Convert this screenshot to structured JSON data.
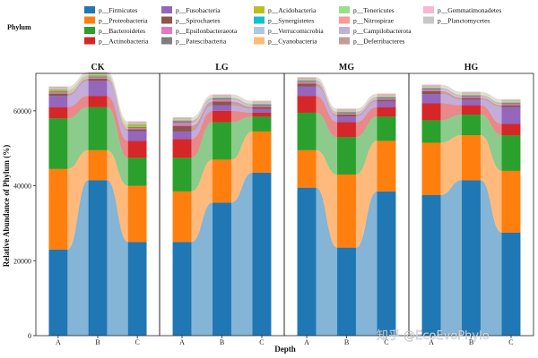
{
  "watermark": "知乎 @EcoEvoPhylo",
  "chart_data": {
    "type": "area",
    "title": "",
    "xlabel": "Depth",
    "ylabel": "Relative Abundance of Phylum (%)",
    "ylim": [
      0,
      70000
    ],
    "yticks": [
      0,
      20000,
      40000,
      60000
    ],
    "ytick_labels": [
      "0",
      "20000",
      "40000",
      "60000"
    ],
    "categories": [
      "A",
      "B",
      "C"
    ],
    "legend_title": "Phylum",
    "legend_position": "top",
    "phyla": [
      {
        "name": "p__Firmicutes",
        "color": "#1f77b4"
      },
      {
        "name": "p__Proteobacteria",
        "color": "#ff7f0e"
      },
      {
        "name": "p__Bacteroidetes",
        "color": "#2ca02c"
      },
      {
        "name": "p__Actinobacteria",
        "color": "#d62728"
      },
      {
        "name": "p__Fusobacteria",
        "color": "#9467bd"
      },
      {
        "name": "p__Spirochaetes",
        "color": "#8c564b"
      },
      {
        "name": "p__Epsilonbacteraeota",
        "color": "#e377c2"
      },
      {
        "name": "p__Patescibacteria",
        "color": "#7f7f7f"
      },
      {
        "name": "p__Acidobacteria",
        "color": "#bcbd22"
      },
      {
        "name": "p__Synergistetes",
        "color": "#17becf"
      },
      {
        "name": "p__Verrucomicrobia",
        "color": "#aec7e8"
      },
      {
        "name": "p__Cyanobacteria",
        "color": "#ffbb78"
      },
      {
        "name": "p__Tenericutes",
        "color": "#98df8a"
      },
      {
        "name": "p__Nitrospirae",
        "color": "#ff9896"
      },
      {
        "name": "p__Campilobacterota",
        "color": "#c5b0d5"
      },
      {
        "name": "p__Deferribacteres",
        "color": "#c49c94"
      },
      {
        "name": "p__Gemmatimonadetes",
        "color": "#f7b6d2"
      },
      {
        "name": "p__Planctomycetes",
        "color": "#c7c7c7"
      }
    ],
    "panels": [
      {
        "title": "CK",
        "series": {
          "p__Firmicutes": [
            23000,
            41500,
            25000
          ],
          "p__Proteobacteria": [
            21500,
            8000,
            15000
          ],
          "p__Bacteroidetes": [
            13500,
            11500,
            7500
          ],
          "p__Actinobacteria": [
            3000,
            3000,
            4500
          ],
          "p__Fusobacteria": [
            3000,
            4000,
            2600
          ],
          "p__Spirochaetes": [
            600,
            600,
            500
          ],
          "p__Epsilonbacteraeota": [
            300,
            300,
            300
          ],
          "p__Patescibacteria": [
            300,
            300,
            300
          ],
          "p__Acidobacteria": [
            400,
            300,
            600
          ],
          "p__Synergistetes": [
            100,
            100,
            100
          ],
          "p__Verrucomicrobia": [
            100,
            100,
            100
          ],
          "p__Cyanobacteria": [
            100,
            100,
            100
          ],
          "p__Tenericutes": [
            100,
            100,
            100
          ],
          "p__Nitrospirae": [
            100,
            100,
            100
          ],
          "p__Campilobacterota": [
            100,
            100,
            100
          ],
          "p__Deferribacteres": [
            100,
            100,
            100
          ],
          "p__Gemmatimonadetes": [
            100,
            100,
            100
          ],
          "p__Planctomycetes": [
            100,
            100,
            100
          ]
        }
      },
      {
        "title": "LG",
        "series": {
          "p__Firmicutes": [
            25000,
            35500,
            43500
          ],
          "p__Proteobacteria": [
            13500,
            11500,
            11000
          ],
          "p__Bacteroidetes": [
            9000,
            10000,
            4000
          ],
          "p__Actinobacteria": [
            5000,
            3000,
            1000
          ],
          "p__Fusobacteria": [
            2000,
            1500,
            1000
          ],
          "p__Spirochaetes": [
            1500,
            1000,
            600
          ],
          "p__Epsilonbacteraeota": [
            800,
            500,
            300
          ],
          "p__Patescibacteria": [
            500,
            400,
            300
          ],
          "p__Acidobacteria": [
            100,
            100,
            100
          ],
          "p__Synergistetes": [
            100,
            100,
            100
          ],
          "p__Verrucomicrobia": [
            100,
            100,
            100
          ],
          "p__Cyanobacteria": [
            100,
            100,
            100
          ],
          "p__Tenericutes": [
            100,
            100,
            100
          ],
          "p__Nitrospirae": [
            100,
            100,
            100
          ],
          "p__Campilobacterota": [
            100,
            100,
            100
          ],
          "p__Deferribacteres": [
            100,
            100,
            100
          ],
          "p__Gemmatimonadetes": [
            100,
            100,
            100
          ],
          "p__Planctomycetes": [
            100,
            100,
            100
          ]
        }
      },
      {
        "title": "MG",
        "series": {
          "p__Firmicutes": [
            39500,
            23500,
            38500
          ],
          "p__Proteobacteria": [
            10000,
            19500,
            13500
          ],
          "p__Bacteroidetes": [
            10000,
            10000,
            6500
          ],
          "p__Actinobacteria": [
            4500,
            4000,
            2500
          ],
          "p__Fusobacteria": [
            2500,
            1500,
            1500
          ],
          "p__Spirochaetes": [
            800,
            500,
            500
          ],
          "p__Epsilonbacteraeota": [
            400,
            300,
            300
          ],
          "p__Patescibacteria": [
            300,
            300,
            300
          ],
          "p__Acidobacteria": [
            100,
            100,
            100
          ],
          "p__Synergistetes": [
            100,
            100,
            100
          ],
          "p__Verrucomicrobia": [
            100,
            100,
            100
          ],
          "p__Cyanobacteria": [
            100,
            100,
            100
          ],
          "p__Tenericutes": [
            100,
            100,
            100
          ],
          "p__Nitrospirae": [
            100,
            100,
            100
          ],
          "p__Campilobacterota": [
            100,
            100,
            100
          ],
          "p__Deferribacteres": [
            100,
            100,
            100
          ],
          "p__Gemmatimonadetes": [
            100,
            100,
            100
          ],
          "p__Planctomycetes": [
            100,
            100,
            100
          ]
        }
      },
      {
        "title": "HG",
        "series": {
          "p__Firmicutes": [
            37500,
            41500,
            27500
          ],
          "p__Proteobacteria": [
            14000,
            12000,
            16500
          ],
          "p__Bacteroidetes": [
            6000,
            5500,
            9500
          ],
          "p__Actinobacteria": [
            4500,
            2500,
            3000
          ],
          "p__Fusobacteria": [
            2500,
            1500,
            4500
          ],
          "p__Spirochaetes": [
            800,
            500,
            500
          ],
          "p__Epsilonbacteraeota": [
            400,
            300,
            300
          ],
          "p__Patescibacteria": [
            300,
            300,
            300
          ],
          "p__Acidobacteria": [
            100,
            100,
            100
          ],
          "p__Synergistetes": [
            100,
            100,
            100
          ],
          "p__Verrucomicrobia": [
            100,
            100,
            100
          ],
          "p__Cyanobacteria": [
            100,
            100,
            100
          ],
          "p__Tenericutes": [
            100,
            100,
            100
          ],
          "p__Nitrospirae": [
            100,
            100,
            100
          ],
          "p__Campilobacterota": [
            100,
            100,
            100
          ],
          "p__Deferribacteres": [
            100,
            100,
            100
          ],
          "p__Gemmatimonadetes": [
            100,
            100,
            100
          ],
          "p__Planctomycetes": [
            100,
            100,
            100
          ]
        }
      }
    ]
  }
}
